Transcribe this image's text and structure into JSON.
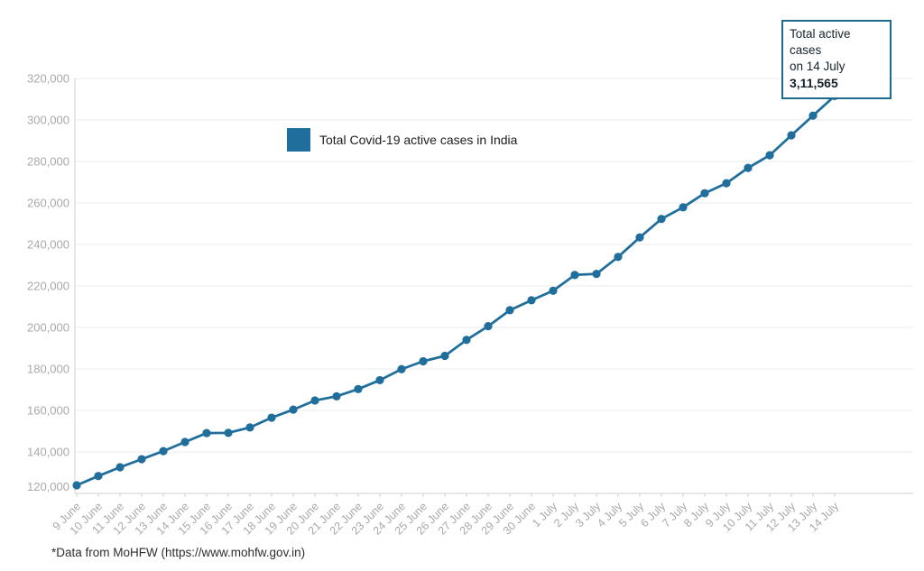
{
  "legend": {
    "label": "Total Covid-19 active cases in India"
  },
  "annotation": {
    "line1": "Total active cases",
    "line2": "on 14 July",
    "value": "3,11,565"
  },
  "footnote": "*Data from MoHFW (https://www.mohfw.gov.in)",
  "colors": {
    "series": "#1f6e9c",
    "annotation_border": "#1d6a8f",
    "axis_label": "#a9a9a9",
    "gridline": "#ebebeb",
    "axis_line": "#d2d2d2"
  },
  "chart_data": {
    "type": "line",
    "title": "",
    "xlabel": "",
    "ylabel": "",
    "x": [
      "9 June",
      "10 June",
      "11 June",
      "12 June",
      "13 June",
      "14 June",
      "15 June",
      "16 June",
      "17 June",
      "18 June",
      "19 June",
      "20 June",
      "21 June",
      "22 June",
      "23 June",
      "24 June",
      "25 June",
      "26 June",
      "27 June",
      "28 June",
      "29 June",
      "30 June",
      "1 July",
      "2 July",
      "3 July",
      "4 July",
      "5 July",
      "6 July",
      "7 July",
      "8 July",
      "9 July",
      "10 July",
      "11 July",
      "12 July",
      "13 July",
      "14 July"
    ],
    "series": [
      {
        "name": "Total Covid-19 active cases in India",
        "values": [
          123900,
          128400,
          132600,
          136500,
          140400,
          144800,
          149100,
          149200,
          151800,
          156500,
          160400,
          164800,
          166800,
          170300,
          174600,
          179900,
          183700,
          186300,
          194000,
          200600,
          208300,
          213100,
          217700,
          225300,
          225800,
          234000,
          243400,
          252300,
          257900,
          264700,
          269500,
          276900,
          283000,
          292600,
          302100,
          311565
        ]
      }
    ],
    "ylim": [
      120000,
      320000
    ],
    "ytick_step": 20000,
    "ytick_labels": [
      "120,000",
      "140,000",
      "160,000",
      "180,000",
      "200,000",
      "220,000",
      "240,000",
      "260,000",
      "280,000",
      "300,000",
      "320,000"
    ],
    "grid": "horizontal",
    "legend_position": "top-left-of-plot",
    "annotation_target_x": "14 July",
    "annotation_target_value": 311565
  }
}
